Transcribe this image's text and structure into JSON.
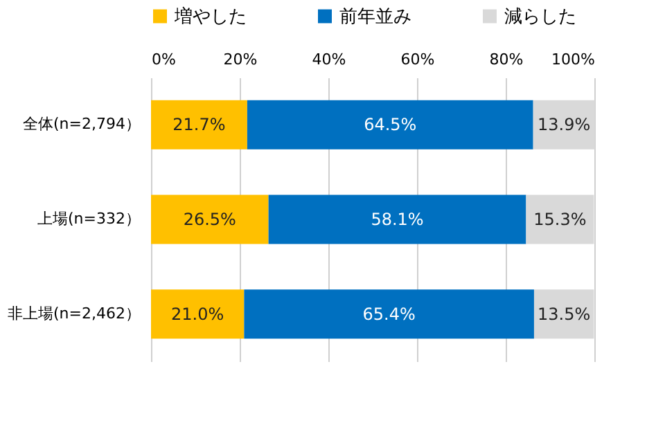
{
  "chart_data": {
    "type": "bar",
    "orientation": "horizontal",
    "stacked": true,
    "categories": [
      "全体(n=2,794）",
      "上場(n=332）",
      "非上場(n=2,462）"
    ],
    "series": [
      {
        "name": "増やした",
        "color": "#ffc000",
        "values": [
          21.7,
          26.5,
          21.0
        ],
        "value_labels": [
          "21.7%",
          "26.5%",
          "21.0%"
        ]
      },
      {
        "name": "前年並み",
        "color": "#0070c0",
        "values": [
          64.5,
          58.1,
          65.4
        ],
        "value_labels": [
          "64.5%",
          "58.1%",
          "65.4%"
        ]
      },
      {
        "name": "減らした",
        "color": "#d9d9d9",
        "values": [
          13.9,
          15.3,
          13.5
        ],
        "value_labels": [
          "13.9%",
          "15.3%",
          "13.5%"
        ]
      }
    ],
    "xlim": [
      0,
      100
    ],
    "xticks": [
      {
        "value": 0,
        "label": "0%"
      },
      {
        "value": 20,
        "label": "20%"
      },
      {
        "value": 40,
        "label": "40%"
      },
      {
        "value": 60,
        "label": "60%"
      },
      {
        "value": 80,
        "label": "80%"
      },
      {
        "value": 100,
        "label": "100%"
      }
    ],
    "grid": "x",
    "legend": "top"
  }
}
